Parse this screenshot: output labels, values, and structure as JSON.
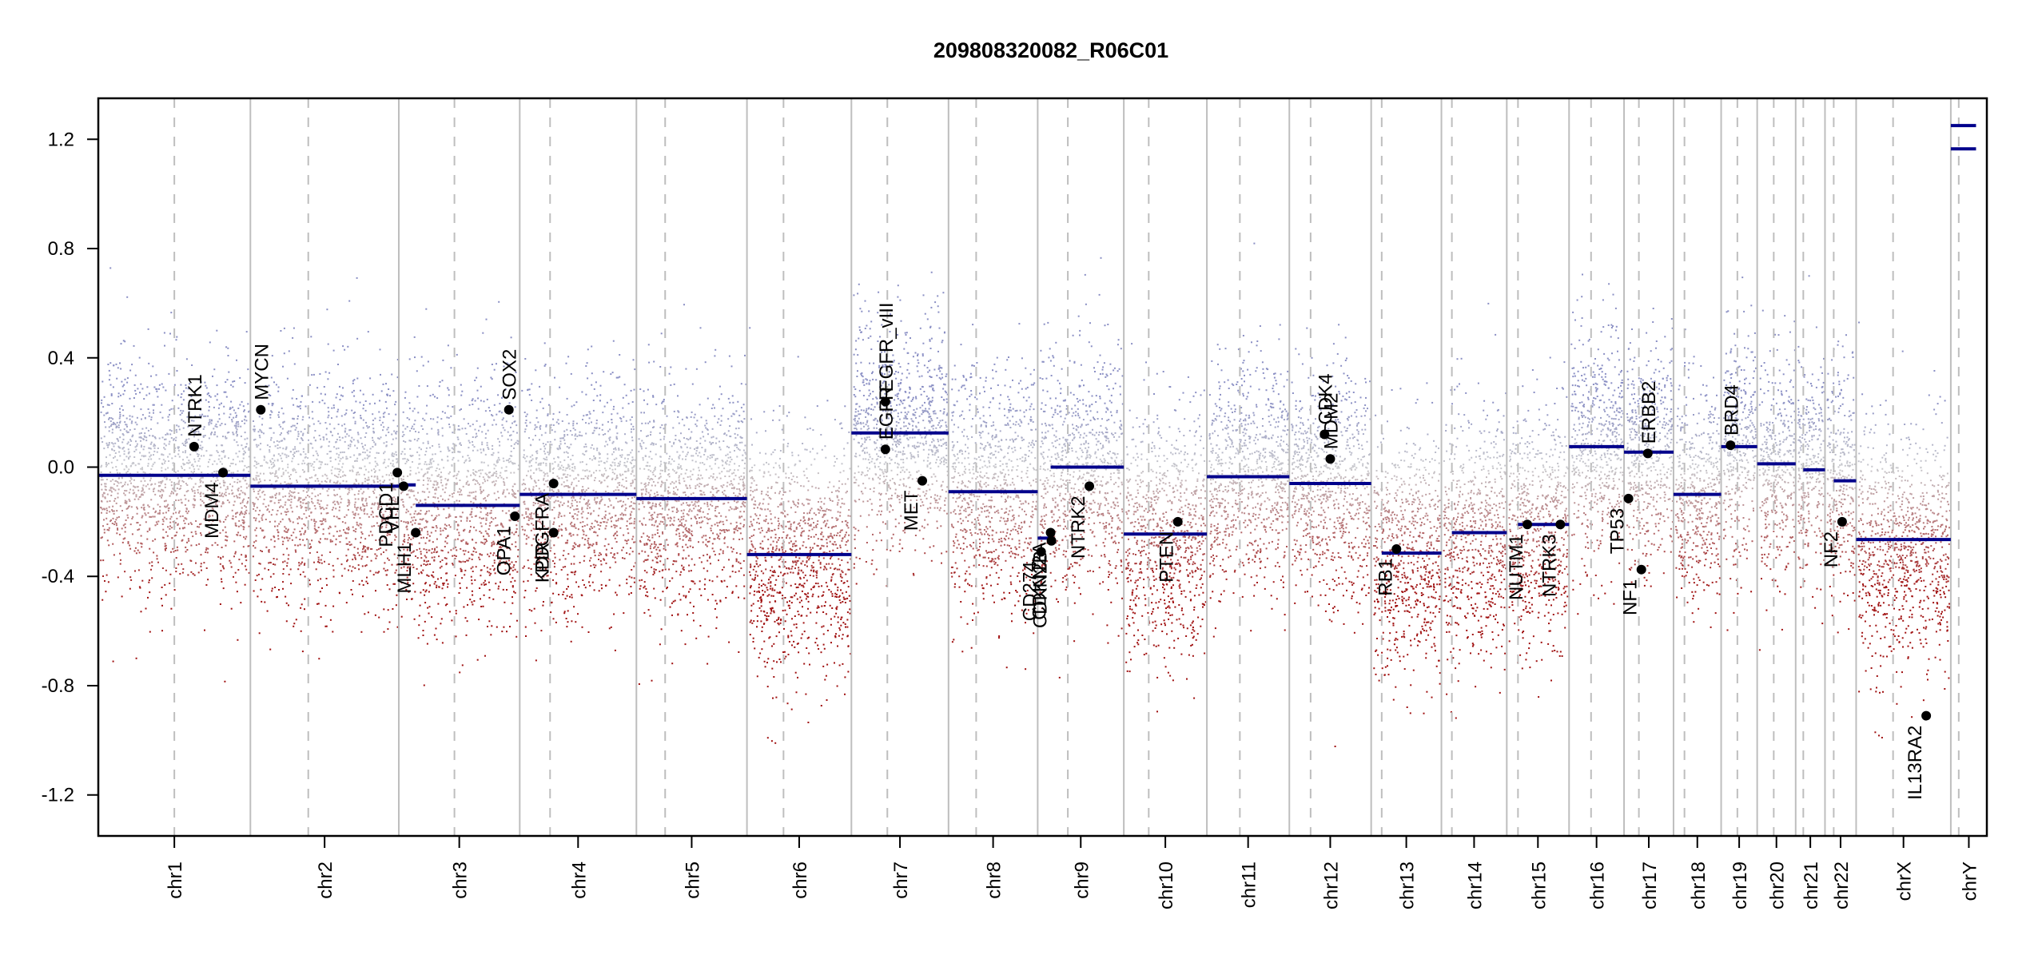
{
  "chart_data": {
    "type": "scatter",
    "title": "209808320082_R06C01",
    "xlabel": "",
    "ylabel": "",
    "ylim": [
      -1.35,
      1.35
    ],
    "y_ticks": [
      -1.2,
      -0.8,
      -0.4,
      0.0,
      0.4,
      0.8,
      1.2
    ],
    "y_tick_labels": [
      "-1.2",
      "-0.8",
      "-0.4",
      "0.0",
      "0.4",
      "0.8",
      "1.2"
    ],
    "grid": false,
    "legend": "none",
    "colors": {
      "segment": "#00008B",
      "gain_probe": "#8A8FC4",
      "neutral_probe": "#C8C8CC",
      "loss_probe": "#A01010",
      "chromosome_boundary": "#BEBEBE",
      "centromere": "#BEBEBE",
      "gene_point": "#000000"
    },
    "chromosomes": [
      {
        "name": "chr1",
        "length": 249,
        "centromere": 0.5,
        "segments": [
          {
            "from": 0,
            "to": 1,
            "value": -0.03
          }
        ],
        "probe_spread": 0.2,
        "probe_center": -0.03
      },
      {
        "name": "chr2",
        "length": 243,
        "centromere": 0.39,
        "segments": [
          {
            "from": 0,
            "to": 1,
            "value": -0.07
          }
        ],
        "probe_spread": 0.2,
        "probe_center": -0.07
      },
      {
        "name": "chr3",
        "length": 198,
        "centromere": 0.46,
        "segments": [
          {
            "from": 0,
            "to": 0.14,
            "value": -0.065
          },
          {
            "from": 0.14,
            "to": 1,
            "value": -0.14
          }
        ],
        "probe_spread": 0.22,
        "probe_center": -0.12
      },
      {
        "name": "chr4",
        "length": 191,
        "centromere": 0.26,
        "segments": [
          {
            "from": 0,
            "to": 1,
            "value": -0.1
          }
        ],
        "probe_spread": 0.2,
        "probe_center": -0.1
      },
      {
        "name": "chr5",
        "length": 181,
        "centromere": 0.26,
        "segments": [
          {
            "from": 0,
            "to": 1,
            "value": -0.115
          }
        ],
        "probe_spread": 0.2,
        "probe_center": -0.115
      },
      {
        "name": "chr6",
        "length": 171,
        "centromere": 0.35,
        "segments": [
          {
            "from": 0,
            "to": 1,
            "value": -0.32
          }
        ],
        "probe_spread": 0.22,
        "probe_center": -0.32
      },
      {
        "name": "chr7",
        "length": 159,
        "centromere": 0.37,
        "segments": [
          {
            "from": 0,
            "to": 1,
            "value": 0.125
          }
        ],
        "probe_spread": 0.2,
        "probe_center": 0.12
      },
      {
        "name": "chr8",
        "length": 146,
        "centromere": 0.31,
        "segments": [
          {
            "from": 0,
            "to": 1,
            "value": -0.09
          }
        ],
        "probe_spread": 0.22,
        "probe_center": -0.09
      },
      {
        "name": "chr9",
        "length": 141,
        "centromere": 0.35,
        "segments": [
          {
            "from": 0,
            "to": 0.15,
            "value": -0.26
          },
          {
            "from": 0.15,
            "to": 1,
            "value": 0.0
          }
        ],
        "probe_spread": 0.22,
        "probe_center": -0.02
      },
      {
        "name": "chr10",
        "length": 136,
        "centromere": 0.3,
        "segments": [
          {
            "from": 0,
            "to": 1,
            "value": -0.245
          }
        ],
        "probe_spread": 0.22,
        "probe_center": -0.245
      },
      {
        "name": "chr11",
        "length": 135,
        "centromere": 0.4,
        "segments": [
          {
            "from": 0,
            "to": 1,
            "value": -0.035
          }
        ],
        "probe_spread": 0.2,
        "probe_center": -0.035
      },
      {
        "name": "chr12",
        "length": 134,
        "centromere": 0.26,
        "segments": [
          {
            "from": 0,
            "to": 1,
            "value": -0.06
          }
        ],
        "probe_spread": 0.2,
        "probe_center": -0.06
      },
      {
        "name": "chr13",
        "length": 115,
        "centromere": 0.15,
        "segments": [
          {
            "from": 0.15,
            "to": 1,
            "value": -0.315
          }
        ],
        "probe_spread": 0.22,
        "probe_center": -0.315
      },
      {
        "name": "chr14",
        "length": 107,
        "centromere": 0.16,
        "segments": [
          {
            "from": 0.16,
            "to": 1,
            "value": -0.24
          }
        ],
        "probe_spread": 0.22,
        "probe_center": -0.24
      },
      {
        "name": "chr15",
        "length": 102,
        "centromere": 0.18,
        "segments": [
          {
            "from": 0.18,
            "to": 1,
            "value": -0.21
          }
        ],
        "probe_spread": 0.22,
        "probe_center": -0.21
      },
      {
        "name": "chr16",
        "length": 90,
        "centromere": 0.4,
        "segments": [
          {
            "from": 0,
            "to": 1,
            "value": 0.075
          }
        ],
        "probe_spread": 0.2,
        "probe_center": 0.07
      },
      {
        "name": "chr17",
        "length": 81,
        "centromere": 0.3,
        "segments": [
          {
            "from": 0,
            "to": 1,
            "value": 0.055
          }
        ],
        "probe_spread": 0.2,
        "probe_center": 0.05
      },
      {
        "name": "chr18",
        "length": 78,
        "centromere": 0.23,
        "segments": [
          {
            "from": 0,
            "to": 1,
            "value": -0.1
          }
        ],
        "probe_spread": 0.2,
        "probe_center": -0.1
      },
      {
        "name": "chr19",
        "length": 59,
        "centromere": 0.45,
        "segments": [
          {
            "from": 0,
            "to": 1,
            "value": 0.075
          }
        ],
        "probe_spread": 0.2,
        "probe_center": 0.07
      },
      {
        "name": "chr20",
        "length": 63,
        "centromere": 0.43,
        "segments": [
          {
            "from": 0,
            "to": 1,
            "value": 0.012
          }
        ],
        "probe_spread": 0.2,
        "probe_center": 0.01
      },
      {
        "name": "chr21",
        "length": 48,
        "centromere": 0.26,
        "segments": [
          {
            "from": 0.26,
            "to": 1,
            "value": -0.01
          }
        ],
        "probe_spread": 0.2,
        "probe_center": -0.01
      },
      {
        "name": "chr22",
        "length": 51,
        "centromere": 0.28,
        "segments": [
          {
            "from": 0.28,
            "to": 1,
            "value": -0.05
          }
        ],
        "probe_spread": 0.22,
        "probe_center": -0.06
      },
      {
        "name": "chrX",
        "length": 155,
        "centromere": 0.39,
        "segments": [
          {
            "from": 0,
            "to": 1,
            "value": -0.265
          }
        ],
        "probe_spread": 0.22,
        "probe_center": -0.3
      },
      {
        "name": "chrY",
        "length": 59,
        "centromere": 0.22,
        "segments": [
          {
            "from": 0,
            "to": 0.7,
            "value": 1.165
          },
          {
            "from": 0,
            "to": 0.7,
            "value": 1.25
          }
        ],
        "probe_spread": 0.0,
        "probe_center": 0.7
      }
    ],
    "genes": [
      {
        "name": "NTRK1",
        "chr": "chr1",
        "pos": 0.63,
        "value": 0.075
      },
      {
        "name": "MDM4",
        "chr": "chr1",
        "pos": 0.82,
        "value": -0.02
      },
      {
        "name": "MYCN",
        "chr": "chr2",
        "pos": 0.07,
        "value": 0.21
      },
      {
        "name": "PDCD1",
        "chr": "chr2",
        "pos": 0.99,
        "value": -0.02
      },
      {
        "name": "VHL",
        "chr": "chr3",
        "pos": 0.04,
        "value": -0.07
      },
      {
        "name": "MLH1",
        "chr": "chr3",
        "pos": 0.14,
        "value": -0.24
      },
      {
        "name": "SOX2",
        "chr": "chr3",
        "pos": 0.91,
        "value": 0.21
      },
      {
        "name": "OPA1",
        "chr": "chr3",
        "pos": 0.96,
        "value": -0.18
      },
      {
        "name": "PDGFRA",
        "chr": "chr4",
        "pos": 0.29,
        "value": -0.06
      },
      {
        "name": "KDR",
        "chr": "chr4",
        "pos": 0.29,
        "value": -0.24
      },
      {
        "name": "EGFR",
        "chr": "chr7",
        "pos": 0.35,
        "value": 0.065
      },
      {
        "name": "EGFR_vIII",
        "chr": "chr7",
        "pos": 0.35,
        "value": 0.24
      },
      {
        "name": "MET",
        "chr": "chr7",
        "pos": 0.73,
        "value": -0.05
      },
      {
        "name": "CD274",
        "chr": "chr9",
        "pos": 0.04,
        "value": -0.31
      },
      {
        "name": "CDKN2A",
        "chr": "chr9",
        "pos": 0.15,
        "value": -0.24
      },
      {
        "name": "CDKN2B",
        "chr": "chr9",
        "pos": 0.16,
        "value": -0.27
      },
      {
        "name": "NTRK2",
        "chr": "chr9",
        "pos": 0.6,
        "value": -0.07
      },
      {
        "name": "PTEN",
        "chr": "chr10",
        "pos": 0.65,
        "value": -0.2
      },
      {
        "name": "CDK4",
        "chr": "chr12",
        "pos": 0.43,
        "value": 0.12
      },
      {
        "name": "MDM2",
        "chr": "chr12",
        "pos": 0.5,
        "value": 0.03
      },
      {
        "name": "RB1",
        "chr": "chr13",
        "pos": 0.36,
        "value": -0.3
      },
      {
        "name": "NUTM1",
        "chr": "chr15",
        "pos": 0.33,
        "value": -0.21
      },
      {
        "name": "NTRK3",
        "chr": "chr15",
        "pos": 0.86,
        "value": -0.21
      },
      {
        "name": "TP53",
        "chr": "chr17",
        "pos": 0.09,
        "value": -0.115
      },
      {
        "name": "NF1",
        "chr": "chr17",
        "pos": 0.35,
        "value": -0.375
      },
      {
        "name": "ERBB2",
        "chr": "chr17",
        "pos": 0.48,
        "value": 0.05
      },
      {
        "name": "BRD4",
        "chr": "chr19",
        "pos": 0.26,
        "value": 0.08
      },
      {
        "name": "NF2",
        "chr": "chr22",
        "pos": 0.55,
        "value": -0.2
      },
      {
        "name": "IL13RA2",
        "chr": "chrX",
        "pos": 0.74,
        "value": -0.91
      }
    ]
  }
}
